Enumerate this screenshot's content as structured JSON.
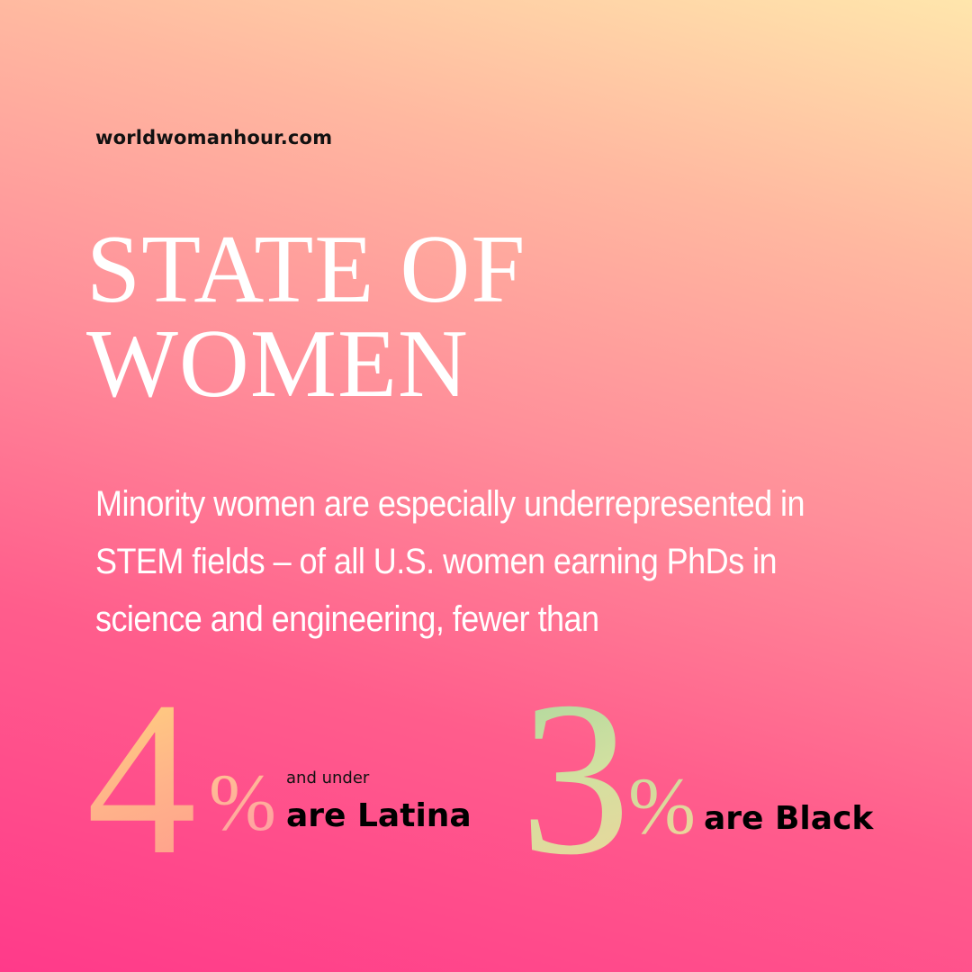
{
  "website": "worldwomanhour.com",
  "title": {
    "line1": "STATE OF",
    "line2": "WOMEN"
  },
  "body_text": "Minority women are especially underrepresented in STEM fields – of all U.S. women earning PhDs in science and engineering, fewer than",
  "stats": [
    {
      "number": "4",
      "percent_sign": "%",
      "prefix": "and under",
      "label": "are Latina",
      "color": "#ffc98a"
    },
    {
      "number": "3",
      "percent_sign": "%",
      "label": "are Black",
      "color": "#bcdb9c"
    }
  ],
  "colors": {
    "background_top": "#ffe6ac",
    "background_bottom": "#ff3a8a",
    "title_text": "#ffffff",
    "label_text": "#000000"
  }
}
